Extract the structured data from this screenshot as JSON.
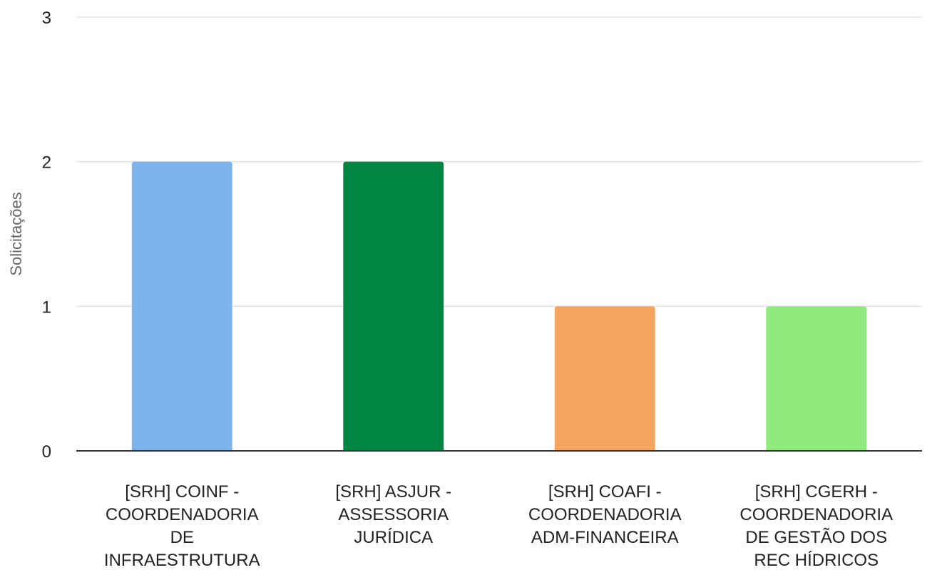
{
  "chart_data": {
    "type": "bar",
    "ylabel": "Solicitações",
    "xlabel": "",
    "ylim": [
      0,
      3
    ],
    "yticks": [
      0,
      1,
      2,
      3
    ],
    "grid": true,
    "legend": "none",
    "categories": [
      [
        "[SRH] COINF -",
        "COORDENADORIA",
        "DE",
        "INFRAESTRUTURA"
      ],
      [
        "[SRH] ASJUR -",
        "ASSESSORIA",
        "JURÍDICA"
      ],
      [
        "[SRH] COAFI -",
        "COORDENADORIA",
        "ADM-FINANCEIRA"
      ],
      [
        "[SRH] CGERH -",
        "COORDENADORIA",
        "DE GESTÃO DOS",
        "REC HÍDRICOS"
      ]
    ],
    "values": [
      2,
      2,
      1,
      1
    ],
    "colors": [
      "#7cb4eb",
      "#008542",
      "#f5a55f",
      "#90e97c"
    ]
  }
}
